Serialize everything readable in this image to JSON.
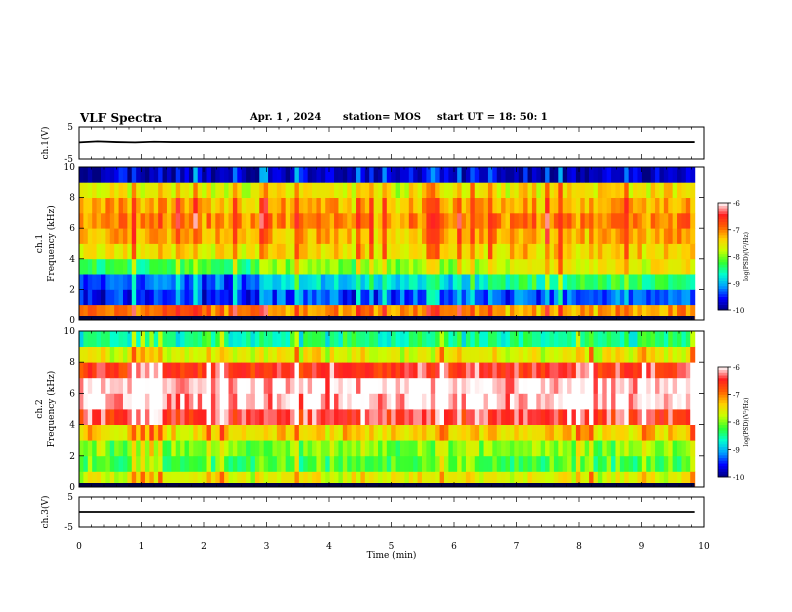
{
  "header": {
    "title": "VLF Spectra",
    "date": "Apr. 1 , 2024",
    "station": "station= MOS",
    "start": "start  UT =   18: 50: 1"
  },
  "colors": {
    "colormap": [
      "#000080",
      "#0000ff",
      "#00a0ff",
      "#00ffd0",
      "#30ff30",
      "#c8ff00",
      "#ffd000",
      "#ff6000",
      "#ff2020",
      "#ffffff"
    ]
  },
  "chart_data": [
    {
      "type": "line",
      "panel": "ch1-voltage",
      "ylabel": "ch.1(V)",
      "ylim": [
        -5,
        5
      ],
      "yticks": [
        "5",
        "-5"
      ],
      "xlim": [
        0,
        10
      ],
      "x": [
        0,
        0.3,
        0.6,
        0.9,
        1.2,
        1.5,
        2,
        3,
        4,
        5,
        6,
        7,
        8,
        9,
        9.85
      ],
      "y": [
        0.2,
        0.5,
        0.3,
        0.2,
        0.4,
        0.3,
        0.3,
        0.3,
        0.3,
        0.3,
        0.3,
        0.3,
        0.3,
        0.3,
        0.3
      ]
    },
    {
      "type": "heatmap",
      "panel": "ch1-spectrogram",
      "ylabel": "ch.1\nFrequency (kHz)",
      "ylabel_top": "ch.1",
      "ylabel_bottom": "Frequency (kHz)",
      "xlim": [
        0,
        10
      ],
      "ylim": [
        0,
        10
      ],
      "yticks": [
        "0",
        "2",
        "4",
        "6",
        "8",
        "10"
      ],
      "data_end_min": 9.85,
      "freq_khz": [
        0.5,
        1.5,
        2.5,
        3.5,
        4.5,
        5.5,
        6.5,
        7.5,
        8.5,
        9.5
      ],
      "time_segments_min": [
        "0-3",
        "3-6.6",
        "6.6-9.85"
      ],
      "log_psd": [
        [
          -6.9,
          -7.1,
          -7.2
        ],
        [
          -9.5,
          -9.4,
          -9.3
        ],
        [
          -9.3,
          -8.9,
          -8.4
        ],
        [
          -8.3,
          -8.0,
          -7.6
        ],
        [
          -7.5,
          -7.5,
          -7.4
        ],
        [
          -7.2,
          -7.3,
          -7.2
        ],
        [
          -7.0,
          -7.1,
          -7.0
        ],
        [
          -7.2,
          -7.3,
          -7.2
        ],
        [
          -7.6,
          -7.6,
          -7.5
        ],
        [
          -9.8,
          -9.8,
          -9.8
        ]
      ],
      "colorbar": {
        "label": "log(PSD)(V²/Hz)",
        "range": [
          -10,
          -6
        ],
        "ticks": [
          "-6",
          "-7",
          "-8",
          "-9",
          "-10"
        ]
      }
    },
    {
      "type": "heatmap",
      "panel": "ch2-spectrogram",
      "ylabel": "ch.2\nFrequency (kHz)",
      "ylabel_top": "ch.2",
      "ylabel_bottom": "Frequency (kHz)",
      "xlim": [
        0,
        10
      ],
      "ylim": [
        0,
        10
      ],
      "yticks": [
        "0",
        "2",
        "4",
        "6",
        "8",
        "10"
      ],
      "data_end_min": 9.85,
      "freq_khz": [
        0.5,
        1.5,
        2.5,
        3.5,
        4.5,
        5.5,
        6.5,
        7.5,
        8.5,
        9.5
      ],
      "time_segments_min": [
        "0-3",
        "3-6.6",
        "6.6-9.85"
      ],
      "log_psd": [
        [
          -7.6,
          -7.6,
          -7.6
        ],
        [
          -8.2,
          -8.2,
          -8.2
        ],
        [
          -8.0,
          -8.0,
          -8.0
        ],
        [
          -7.4,
          -7.4,
          -7.4
        ],
        [
          -6.4,
          -6.4,
          -6.4
        ],
        [
          -6.05,
          -6.05,
          -6.05
        ],
        [
          -6.05,
          -6.05,
          -6.05
        ],
        [
          -6.5,
          -6.5,
          -6.5
        ],
        [
          -7.6,
          -7.6,
          -7.6
        ],
        [
          -8.5,
          -8.5,
          -8.5
        ]
      ],
      "colorbar": {
        "label": "log(PSD)(V²/Hz)",
        "range": [
          -10,
          -6
        ],
        "ticks": [
          "-6",
          "-7",
          "-8",
          "-9",
          "-10"
        ]
      }
    },
    {
      "type": "line",
      "panel": "ch3-voltage",
      "ylabel": "ch.3(V)",
      "ylim": [
        -5,
        5
      ],
      "yticks": [
        "5",
        "-5"
      ],
      "xlim": [
        0,
        10
      ],
      "xlabel": "Time (min)",
      "xticks": [
        "0",
        "1",
        "2",
        "3",
        "4",
        "5",
        "6",
        "7",
        "8",
        "9",
        "10"
      ],
      "x": [
        0,
        1,
        2,
        3,
        4,
        5,
        6,
        7,
        8,
        9,
        9.85
      ],
      "y": [
        0.0,
        0.0,
        0.0,
        0.0,
        0.0,
        0.0,
        0.0,
        0.0,
        0.0,
        0.0,
        0.0
      ]
    }
  ]
}
